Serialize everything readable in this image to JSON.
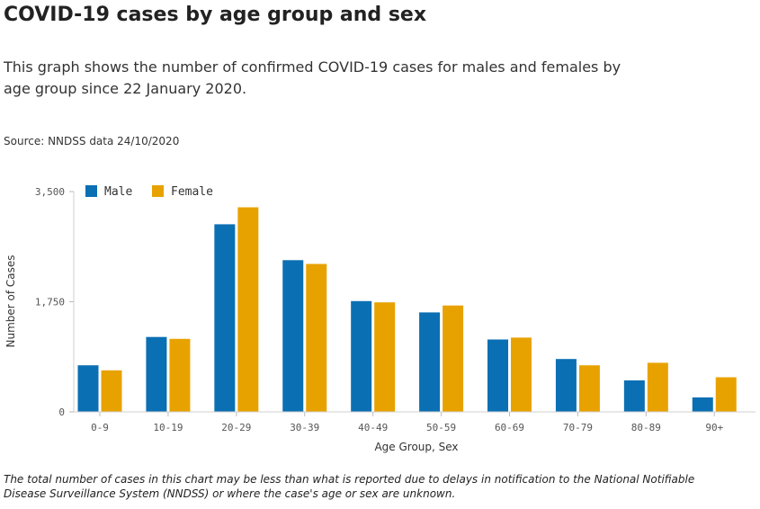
{
  "title": "COVID-19 cases by age group and sex",
  "description": "This graph shows the number of confirmed COVID-19 cases for males and females by age group since 22 January 2020.",
  "source": "Source: NNDSS data 24/10/2020",
  "footnote": "The total number of cases in this chart may be less than what is reported due to delays in notification to the National Notifiable Disease Surveillance System (NNDSS) or where the case's age or sex are unknown.",
  "chart_data": {
    "type": "bar",
    "xlabel": "Age Group, Sex",
    "ylabel": "Number of Cases",
    "ylim": [
      0,
      3500
    ],
    "yticks": [
      0,
      1750,
      3500
    ],
    "ytick_labels": [
      "0",
      "1,750",
      "3,500"
    ],
    "grid": false,
    "legend_position": "top-left",
    "categories": [
      "0-9",
      "10-19",
      "20-29",
      "30-39",
      "40-49",
      "50-59",
      "60-69",
      "70-79",
      "80-89",
      "90+"
    ],
    "series": [
      {
        "name": "Male",
        "color": "#0b6fb3",
        "values": [
          740,
          1190,
          2980,
          2410,
          1760,
          1580,
          1150,
          840,
          500,
          230
        ]
      },
      {
        "name": "Female",
        "color": "#e8a200",
        "values": [
          660,
          1160,
          3250,
          2350,
          1740,
          1690,
          1180,
          740,
          780,
          550
        ]
      }
    ]
  }
}
